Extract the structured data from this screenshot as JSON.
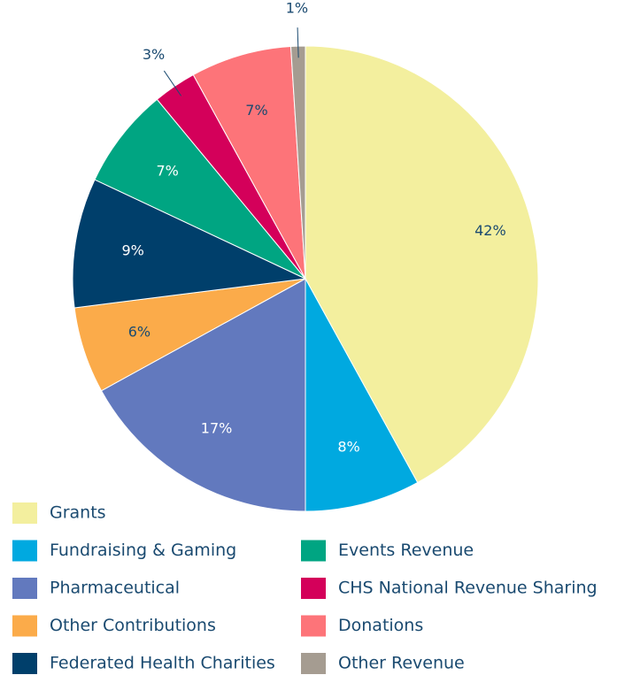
{
  "chart_data": {
    "type": "pie",
    "categories": [
      "Grants",
      "Fundraising & Gaming",
      "Pharmaceutical",
      "Other Contributions",
      "Federated Health Charities",
      "Events Revenue",
      "CHS National Revenue Sharing",
      "Donations",
      "Other Revenue"
    ],
    "values": [
      42,
      8,
      17,
      6,
      9,
      7,
      3,
      7,
      1
    ],
    "value_labels": [
      "42%",
      "8%",
      "17%",
      "6%",
      "9%",
      "7%",
      "3%",
      "7%",
      "1%"
    ],
    "colors": [
      "#f3ef9e",
      "#00a9e0",
      "#6279be",
      "#fbab4a",
      "#003f6b",
      "#00a582",
      "#d4005a",
      "#fd7479",
      "#a59c91"
    ]
  }
}
